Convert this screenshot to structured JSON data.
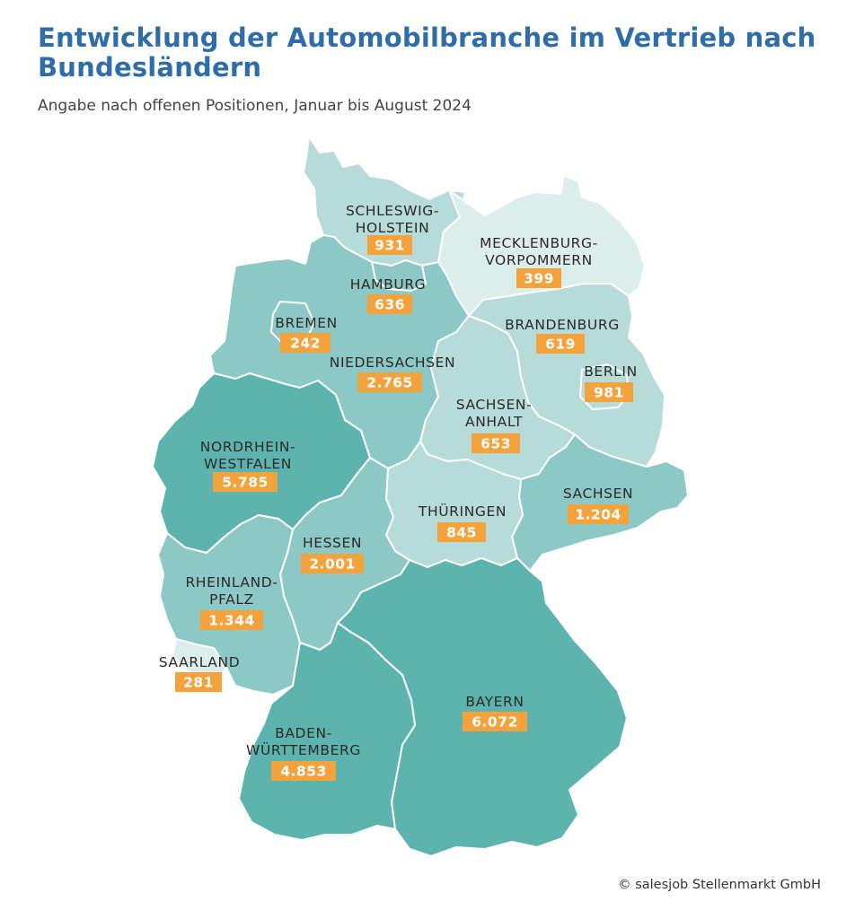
{
  "header": {
    "title": "Entwicklung der Automobilbranche im Vertrieb nach Bundesländern",
    "subtitle": "Angabe nach offenen Positionen, Januar bis August 2024"
  },
  "footer": {
    "credit": "© salesjob Stellenmarkt GmbH"
  },
  "colors": {
    "title": "#2e6da8",
    "value_badge": "#f4a23c",
    "shade_darkest": "#5db3ae",
    "shade_medium": "#8cc8c5",
    "shade_light": "#b6dbd9",
    "shade_lightest": "#dceeec"
  },
  "states": [
    {
      "id": "sh",
      "name_lines": [
        "SCHLESWIG-",
        "HOLSTEIN"
      ],
      "value": "931",
      "shade": "light"
    },
    {
      "id": "mv",
      "name_lines": [
        "MECKLENBURG-",
        "VORPOMMERN"
      ],
      "value": "399",
      "shade": "lightest"
    },
    {
      "id": "hh",
      "name_lines": [
        "HAMBURG"
      ],
      "value": "636",
      "shade": "medium"
    },
    {
      "id": "hb",
      "name_lines": [
        "BREMEN"
      ],
      "value": "242",
      "shade": "medium"
    },
    {
      "id": "bb",
      "name_lines": [
        "BRANDENBURG"
      ],
      "value": "619",
      "shade": "light"
    },
    {
      "id": "be",
      "name_lines": [
        "BERLIN"
      ],
      "value": "981",
      "shade": "light"
    },
    {
      "id": "ni",
      "name_lines": [
        "NIEDERSACHSEN"
      ],
      "value": "2.765",
      "shade": "medium"
    },
    {
      "id": "st",
      "name_lines": [
        "SACHSEN-",
        "ANHALT"
      ],
      "value": "653",
      "shade": "light"
    },
    {
      "id": "nw",
      "name_lines": [
        "NORDRHEIN-",
        "WESTFALEN"
      ],
      "value": "5.785",
      "shade": "darkest"
    },
    {
      "id": "sn",
      "name_lines": [
        "SACHSEN"
      ],
      "value": "1.204",
      "shade": "medium"
    },
    {
      "id": "th",
      "name_lines": [
        "THÜRINGEN"
      ],
      "value": "845",
      "shade": "light"
    },
    {
      "id": "he",
      "name_lines": [
        "HESSEN"
      ],
      "value": "2.001",
      "shade": "medium"
    },
    {
      "id": "rp",
      "name_lines": [
        "RHEINLAND-",
        "PFALZ"
      ],
      "value": "1.344",
      "shade": "medium"
    },
    {
      "id": "sl",
      "name_lines": [
        "SAARLAND"
      ],
      "value": "281",
      "shade": "lightest"
    },
    {
      "id": "by",
      "name_lines": [
        "BAYERN"
      ],
      "value": "6.072",
      "shade": "darkest"
    },
    {
      "id": "bw",
      "name_lines": [
        "BADEN-",
        "WÜRTTEMBERG"
      ],
      "value": "4.853",
      "shade": "darkest"
    }
  ]
}
